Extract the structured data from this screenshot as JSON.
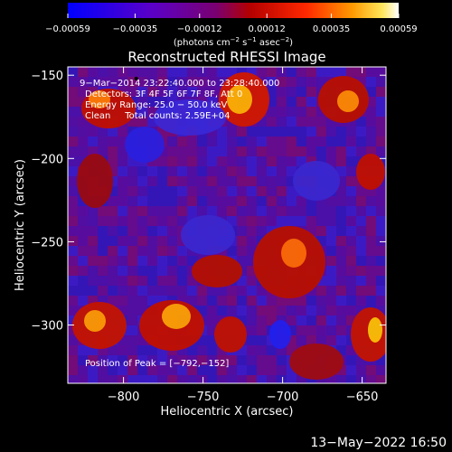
{
  "chart_data": {
    "type": "heatmap",
    "title": "Reconstructed RHESSI Image",
    "xlabel": "Heliocentric X (arcsec)",
    "ylabel": "Heliocentric Y (arcsec)",
    "xlim": [
      -835,
      -635
    ],
    "ylim": [
      -335,
      -145
    ],
    "x_ticks": [
      -800,
      -750,
      -700,
      -650
    ],
    "y_ticks": [
      -150,
      -200,
      -250,
      -300
    ],
    "x_tick_labels": [
      "−800",
      "−750",
      "−700",
      "−650"
    ],
    "y_tick_labels": [
      "−150",
      "−200",
      "−250",
      "−300"
    ],
    "colorbar": {
      "range": [
        -0.00059,
        0.00059
      ],
      "tick_values": [
        -0.00059,
        -0.00035,
        -0.00012,
        0.00012,
        0.00035,
        0.00059
      ],
      "tick_labels": [
        "−0.00059",
        "−0.00035",
        "−0.00012",
        "0.00012",
        "0.00035",
        "0.00059"
      ],
      "units_label": "(photons cm",
      "units_exp1": "−2",
      "units_mid": " s",
      "units_exp2": "−1",
      "units_mid2": " asec",
      "units_exp3": "−2",
      "units_end": ")"
    },
    "annotations": {
      "time": "9−Mar−2014 23:22:40.000 to 23:28:40.000",
      "detectors": "Detectors: 3F 4F 5F 6F 7F 8F, Att 0",
      "energy": "Energy Range: 25.0 − 50.0 keV",
      "clean": "Clean     Total counts: 2.59E+04",
      "peak": "Position of Peak = [−792,−152]"
    },
    "peak_position": [
      -792,
      -152
    ],
    "grid": false,
    "colormap": "blue-purple-red-yellow-white"
  },
  "footer": {
    "date": "13−May−2022 16:50"
  }
}
